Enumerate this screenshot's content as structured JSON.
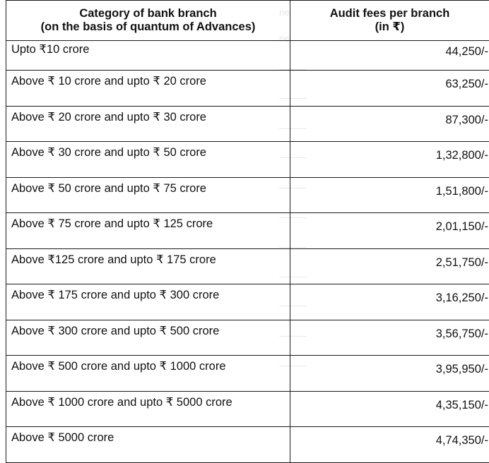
{
  "table": {
    "header": {
      "category_line1": "Category of bank branch",
      "category_line2": "(on the basis of quantum of Advances)",
      "fees_line1": "Audit fees per branch",
      "fees_line2": "(in ₹)"
    },
    "rows": [
      {
        "category": "Upto ₹10 crore",
        "fee": "44,250/-"
      },
      {
        "category": "Above ₹ 10 crore and upto ₹ 20 crore",
        "fee": "63,250/-"
      },
      {
        "category": "Above ₹ 20 crore and upto ₹ 30 crore",
        "fee": "87,300/-"
      },
      {
        "category": "Above ₹ 30 crore and upto ₹ 50 crore",
        "fee": "1,32,800/-"
      },
      {
        "category": "Above ₹ 50 crore and upto ₹ 75 crore",
        "fee": "1,51,800/-"
      },
      {
        "category": "Above ₹ 75 crore and upto ₹ 125 crore",
        "fee": "2,01,150/-"
      },
      {
        "category": "Above ₹125 crore and upto ₹ 175 crore",
        "fee": "2,51,750/-"
      },
      {
        "category": "Above ₹ 175 crore and upto ₹ 300 crore",
        "fee": "3,16,250/-"
      },
      {
        "category": "Above ₹ 300 crore and upto ₹ 500 crore",
        "fee": "3,56,750/-"
      },
      {
        "category": "Above ₹ 500 crore and upto ₹ 1000 crore",
        "fee": "3,95,950/-"
      },
      {
        "category": "Above ₹ 1000 crore and upto ₹ 5000 crore",
        "fee": "4,35,150/-"
      },
      {
        "category": "Above ₹ 5000 crore",
        "fee": "4,74,350/-"
      }
    ]
  }
}
